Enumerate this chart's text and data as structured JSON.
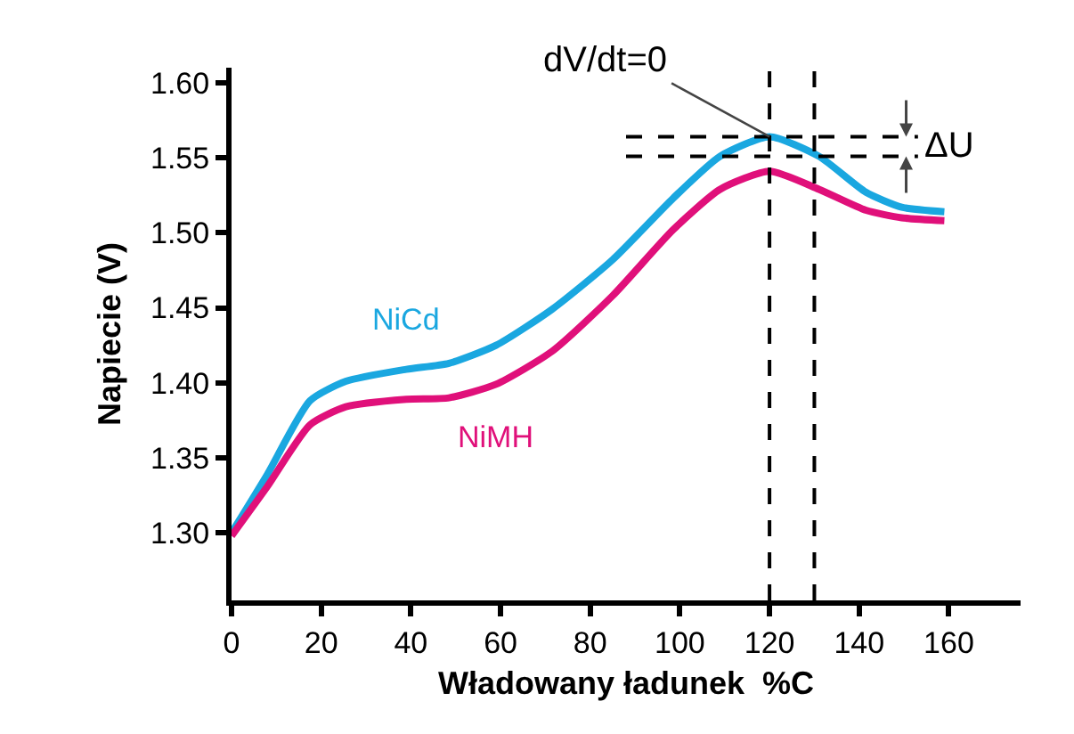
{
  "chart_data": {
    "type": "line",
    "xlabel": "Władowany ładunek  %C",
    "ylabel": "Napiecie (V)",
    "xlim": [
      0,
      176
    ],
    "ylim": [
      1.255,
      1.61
    ],
    "xticks": [
      0,
      20,
      40,
      60,
      80,
      100,
      120,
      140,
      160
    ],
    "yticks": [
      {
        "value": 1.3,
        "label": "1.30"
      },
      {
        "value": 1.35,
        "label": "1.35"
      },
      {
        "value": 1.4,
        "label": "1.40"
      },
      {
        "value": 1.45,
        "label": "1.45"
      },
      {
        "value": 1.5,
        "label": "1.50"
      },
      {
        "value": 1.55,
        "label": "1.55"
      },
      {
        "value": 1.6,
        "label": "1.60"
      }
    ],
    "grid": false,
    "legend": false,
    "marker": "none",
    "line_style": "solid",
    "series": [
      {
        "name": "NiCd",
        "color": "#1aa7e0",
        "x": [
          0,
          8,
          17.5,
          25.5,
          39,
          48.5,
          59,
          71.5,
          85,
          98.5,
          109,
          120,
          131,
          141.5,
          149.5,
          159
        ],
        "values": [
          1.3,
          1.339,
          1.388,
          1.401,
          1.409,
          1.413,
          1.425,
          1.449,
          1.482,
          1.523,
          1.551,
          1.564,
          1.551,
          1.527,
          1.517,
          1.514
        ]
      },
      {
        "name": "NiMH",
        "color": "#e0107a",
        "x": [
          0,
          8,
          17.5,
          25.5,
          39,
          48.5,
          59,
          71.5,
          85,
          98.5,
          109,
          120,
          131,
          141.5,
          149.5,
          159
        ],
        "values": [
          1.298,
          1.331,
          1.372,
          1.384,
          1.389,
          1.39,
          1.399,
          1.421,
          1.458,
          1.502,
          1.529,
          1.541,
          1.529,
          1.515,
          1.51,
          1.508
        ]
      }
    ],
    "ref_lines": [
      {
        "axis": "x",
        "value": 120,
        "color": "#000000",
        "line_style": "dashed"
      },
      {
        "axis": "x",
        "value": 130,
        "color": "#000000",
        "line_style": "dashed"
      },
      {
        "axis": "y",
        "value": 1.564,
        "color": "#000000",
        "line_style": "dashed"
      },
      {
        "axis": "y",
        "value": 1.551,
        "color": "#000000",
        "line_style": "dashed"
      }
    ],
    "annotations": [
      {
        "text": "dV/dt=0",
        "x": 120,
        "y": 1.564
      },
      "ΔU"
    ]
  }
}
